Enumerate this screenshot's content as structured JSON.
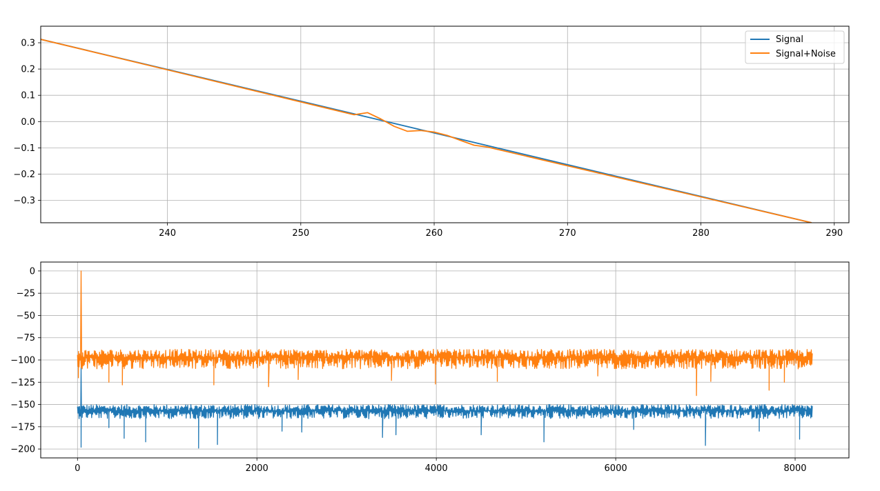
{
  "chart_data": [
    {
      "type": "line",
      "title": "",
      "xlabel": "",
      "ylabel": "",
      "xlim": [
        230.5,
        291.1
      ],
      "ylim": [
        -0.385,
        0.363
      ],
      "xticks": [
        240,
        250,
        260,
        270,
        280,
        290
      ],
      "yticks": [
        -0.3,
        -0.2,
        -0.1,
        0.0,
        0.1,
        0.2,
        0.3
      ],
      "grid": true,
      "legend": {
        "position": "top-right",
        "entries": [
          "Signal",
          "Signal+Noise"
        ]
      },
      "series": [
        {
          "name": "Signal",
          "color": "#1f77b4",
          "points": [
            [
              230.5,
              0.313
            ],
            [
              288.3,
              -0.385
            ]
          ]
        },
        {
          "name": "Signal+Noise",
          "color": "#ff7f0e",
          "points": [
            [
              230.5,
              0.313
            ],
            [
              254,
              0.026
            ],
            [
              255,
              0.034
            ],
            [
              256,
              0.01
            ],
            [
              257,
              -0.018
            ],
            [
              258,
              -0.037
            ],
            [
              259,
              -0.034
            ],
            [
              260,
              -0.04
            ],
            [
              261,
              -0.053
            ],
            [
              262,
              -0.072
            ],
            [
              263,
              -0.09
            ],
            [
              264,
              -0.097
            ],
            [
              288.3,
              -0.385
            ]
          ]
        }
      ]
    },
    {
      "type": "line",
      "title": "",
      "xlabel": "",
      "ylabel": "",
      "xlim": [
        -410,
        8600
      ],
      "ylim": [
        -210,
        10
      ],
      "xticks": [
        0,
        2000,
        4000,
        6000,
        8000
      ],
      "yticks": [
        -200,
        -175,
        -150,
        -125,
        -100,
        -75,
        -50,
        -25,
        0
      ],
      "grid": true,
      "series": [
        {
          "name": "Signal",
          "color": "#1f77b4",
          "x_range": [
            0,
            8192
          ],
          "baseline": -157,
          "band": [
            -166,
            -150
          ],
          "spike_near_start": {
            "x": 40,
            "value": -108
          },
          "dips": [
            [
              40,
              -198
            ],
            [
              350,
              -176
            ],
            [
              520,
              -188
            ],
            [
              760,
              -192
            ],
            [
              1350,
              -199
            ],
            [
              1560,
              -195
            ],
            [
              2280,
              -180
            ],
            [
              2500,
              -181
            ],
            [
              3400,
              -187
            ],
            [
              3550,
              -184
            ],
            [
              4500,
              -184
            ],
            [
              5200,
              -192
            ],
            [
              6200,
              -178
            ],
            [
              7000,
              -196
            ],
            [
              7600,
              -180
            ],
            [
              8050,
              -189
            ]
          ]
        },
        {
          "name": "Signal+Noise",
          "color": "#ff7f0e",
          "x_range": [
            0,
            8192
          ],
          "baseline": -97,
          "band": [
            -110,
            -88
          ],
          "peak": {
            "x": 40,
            "value": 0
          },
          "dips": [
            [
              10,
              -120
            ],
            [
              350,
              -125
            ],
            [
              500,
              -128
            ],
            [
              1520,
              -128
            ],
            [
              2130,
              -130
            ],
            [
              2460,
              -122
            ],
            [
              3500,
              -123
            ],
            [
              3990,
              -127
            ],
            [
              4680,
              -124
            ],
            [
              5800,
              -118
            ],
            [
              6900,
              -140
            ],
            [
              7060,
              -124
            ],
            [
              7710,
              -134
            ],
            [
              7880,
              -125
            ]
          ]
        }
      ]
    }
  ]
}
